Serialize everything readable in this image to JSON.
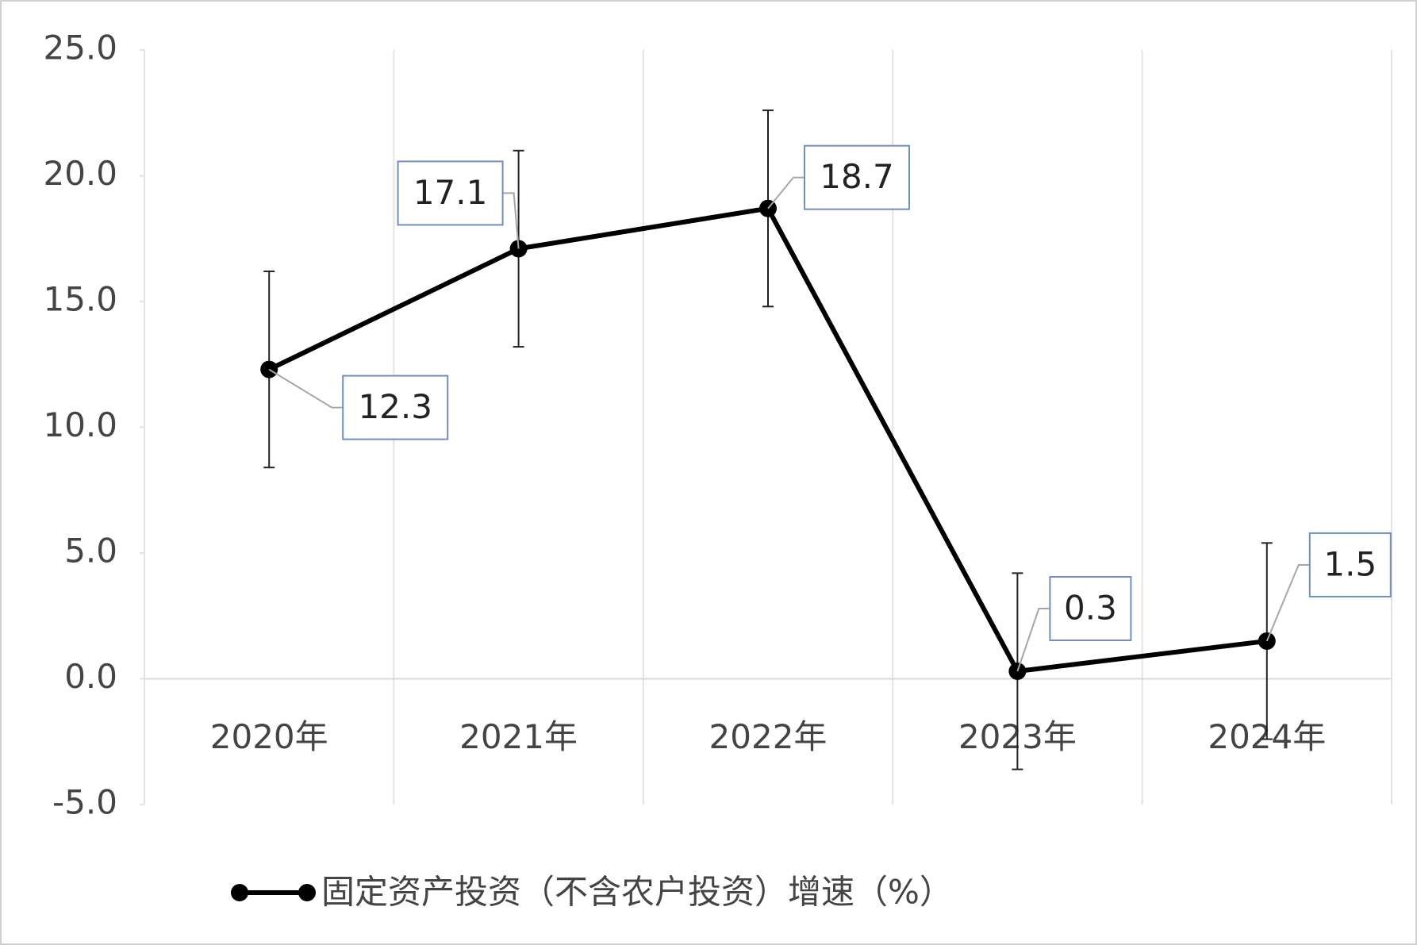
{
  "chart_data": {
    "type": "line",
    "categories": [
      "2020年",
      "2021年",
      "2022年",
      "2023年",
      "2024年"
    ],
    "series": [
      {
        "name": "固定资产投资（不含农户投资）增速（%）",
        "color": "#000000",
        "values": [
          12.3,
          17.1,
          18.7,
          0.3,
          1.5
        ],
        "errors": [
          3.9,
          3.9,
          3.9,
          3.9,
          3.9
        ]
      }
    ],
    "ylim": [
      -5,
      25
    ],
    "yticks": [
      {
        "value": -5,
        "label": "-5.0"
      },
      {
        "value": 0,
        "label": "0.0"
      },
      {
        "value": 5,
        "label": "5.0"
      },
      {
        "value": 10,
        "label": "10.0"
      },
      {
        "value": 15,
        "label": "15.0"
      },
      {
        "value": 20,
        "label": "20.0"
      },
      {
        "value": 25,
        "label": "25.0"
      }
    ],
    "legend": "bottom"
  }
}
